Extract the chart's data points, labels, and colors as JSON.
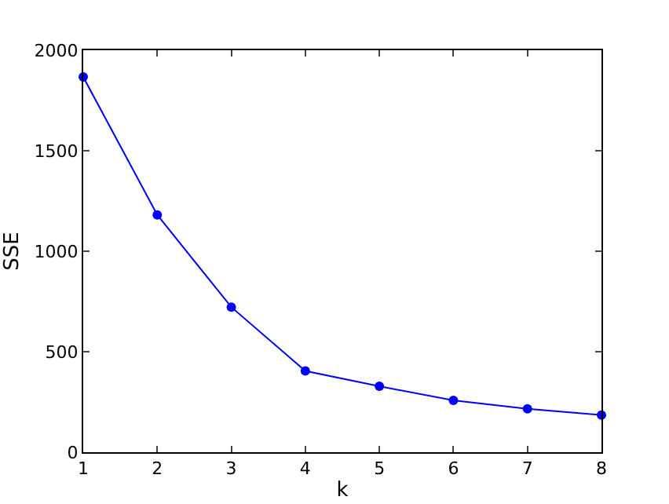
{
  "chart_data": {
    "type": "line",
    "xlabel": "k",
    "ylabel": "SSE",
    "x": [
      1,
      2,
      3,
      4,
      5,
      6,
      7,
      8
    ],
    "series": [
      {
        "color": "#0000ff",
        "values": [
          1867,
          1181,
          722,
          404,
          328,
          258,
          216,
          185
        ]
      }
    ],
    "xlim": [
      1,
      8
    ],
    "xticks": [
      1,
      2,
      3,
      4,
      5,
      6,
      7,
      8
    ],
    "ylim": [
      0,
      2000
    ],
    "yticks": [
      0,
      500,
      1000,
      1500,
      2000
    ],
    "grid": false,
    "legend": false,
    "marker": "circle",
    "line_style": "solid"
  }
}
